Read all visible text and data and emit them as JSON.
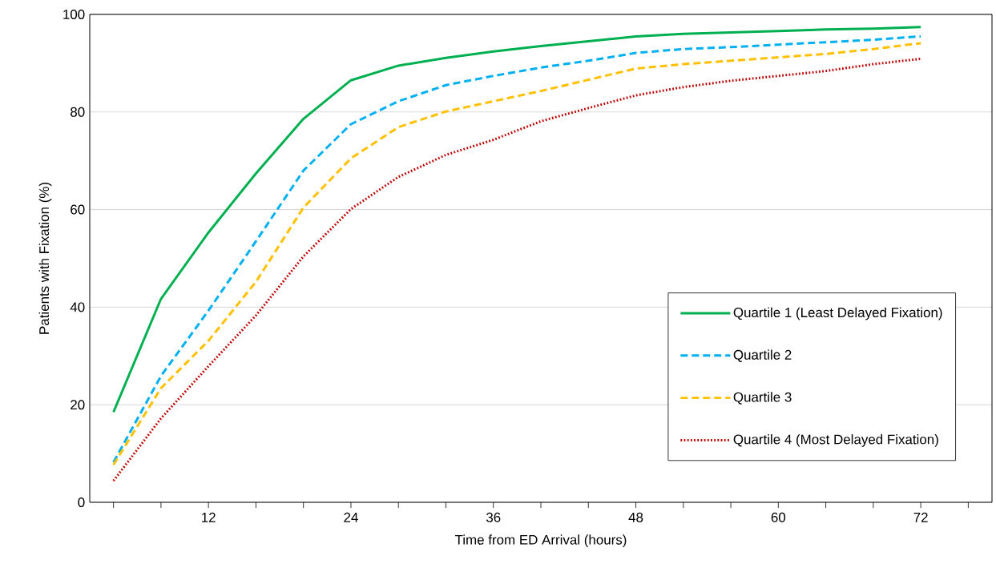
{
  "chart_data": {
    "type": "line",
    "xlabel": "Time from ED Arrival (hours)",
    "ylabel": "Patients with Fixation (%)",
    "x": [
      4,
      8,
      12,
      16,
      20,
      24,
      28,
      32,
      36,
      40,
      44,
      48,
      52,
      56,
      60,
      64,
      68,
      72
    ],
    "series": [
      {
        "name": "Quartile 1 (Least Delayed Fixation)",
        "color": "#00b050",
        "line_style": "solid",
        "values": [
          18.5,
          41.7,
          55.3,
          67.4,
          78.6,
          86.5,
          89.5,
          91.1,
          92.4,
          93.5,
          94.5,
          95.5,
          96.0,
          96.3,
          96.6,
          96.9,
          97.1,
          97.4
        ]
      },
      {
        "name": "Quartile 2",
        "color": "#00b0f0",
        "line_style": "dashed",
        "values": [
          8.2,
          25.9,
          39.3,
          53.5,
          68.0,
          77.5,
          82.2,
          85.5,
          87.4,
          89.1,
          90.5,
          92.1,
          92.9,
          93.3,
          93.8,
          94.3,
          94.8,
          95.5
        ]
      },
      {
        "name": "Quartile 3",
        "color": "#ffc000",
        "line_style": "dashed",
        "values": [
          7.7,
          23.4,
          33.1,
          45.2,
          60.4,
          70.5,
          76.9,
          80.1,
          82.2,
          84.3,
          86.6,
          88.9,
          89.8,
          90.5,
          91.2,
          91.9,
          92.9,
          94.1
        ]
      },
      {
        "name": "Quartile 4 (Most Delayed Fixation)",
        "color": "#c00000",
        "line_style": "dotted",
        "values": [
          4.4,
          17.2,
          27.9,
          38.3,
          50.4,
          60.1,
          66.7,
          71.2,
          74.3,
          78.1,
          80.8,
          83.4,
          85.1,
          86.4,
          87.4,
          88.4,
          89.8,
          90.9
        ]
      }
    ],
    "xlim": [
      2,
      78
    ],
    "xticks": [
      {
        "value": 4,
        "label": null
      },
      {
        "value": 8,
        "label": null
      },
      12,
      {
        "value": 16,
        "label": null
      },
      {
        "value": 20,
        "label": null
      },
      24,
      {
        "value": 28,
        "label": null
      },
      {
        "value": 32,
        "label": null
      },
      36,
      {
        "value": 40,
        "label": null
      },
      {
        "value": 44,
        "label": null
      },
      48,
      {
        "value": 52,
        "label": null
      },
      {
        "value": 56,
        "label": null
      },
      60,
      {
        "value": 64,
        "label": null
      },
      {
        "value": 68,
        "label": null
      },
      72,
      {
        "value": 76,
        "label": null
      }
    ],
    "ylim": [
      0,
      100
    ],
    "yticks": [
      0,
      20,
      40,
      60,
      80,
      100
    ],
    "grid": "y",
    "legend": "bottom right",
    "marker": "none"
  }
}
